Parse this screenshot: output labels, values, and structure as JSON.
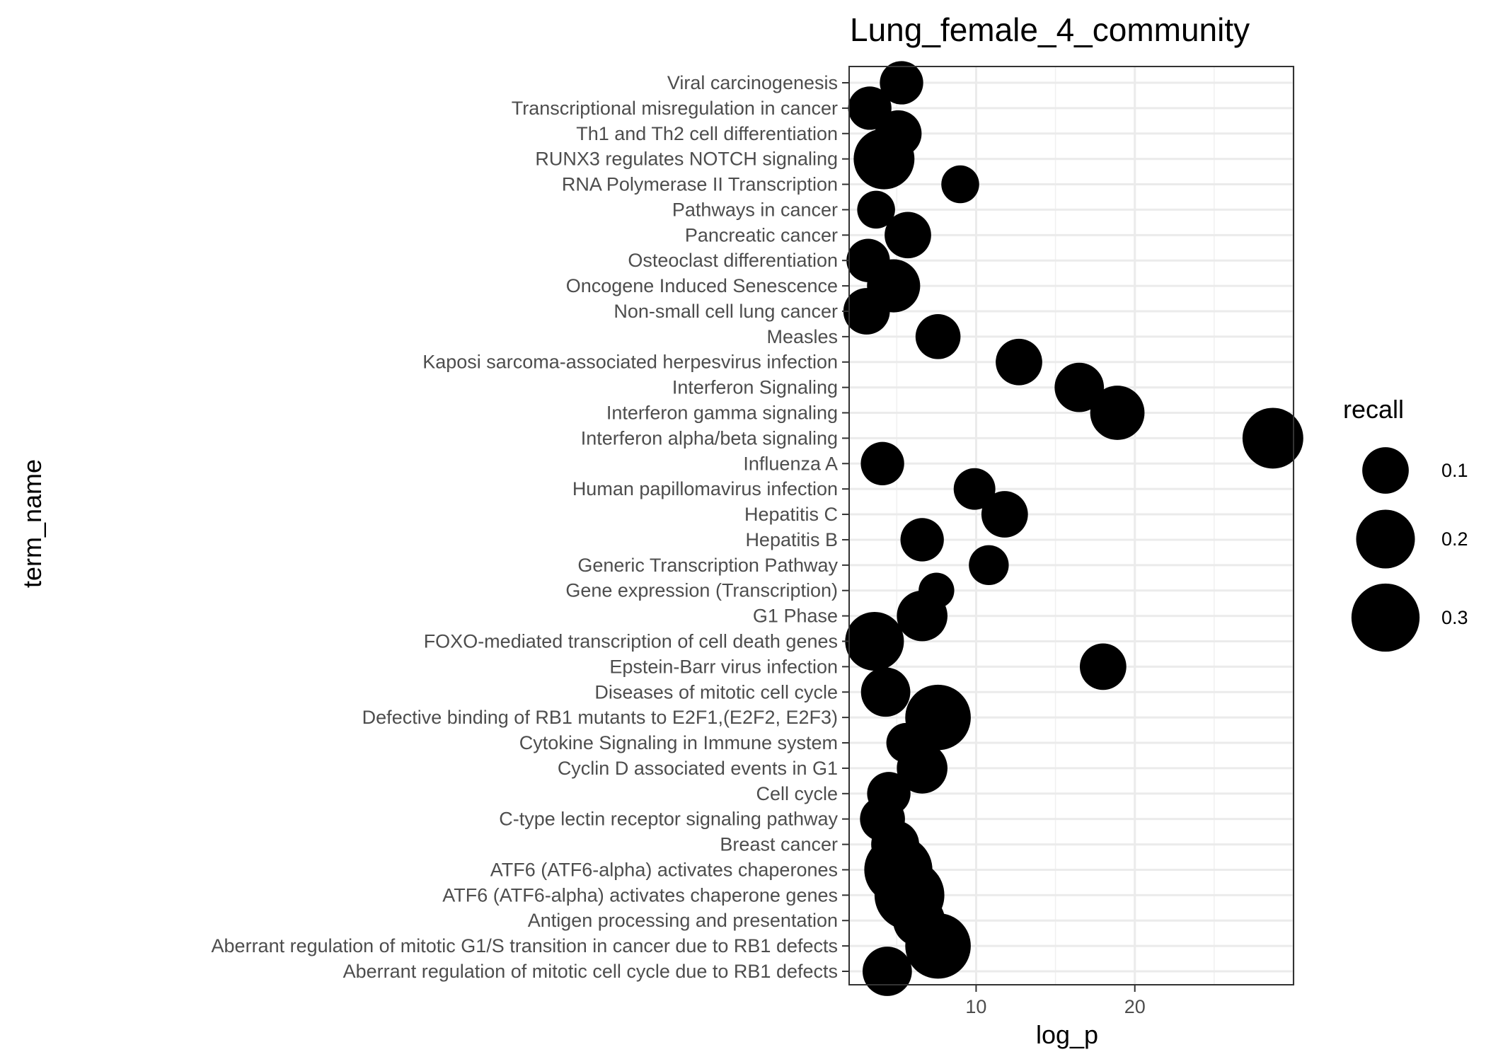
{
  "chart_data": {
    "type": "scatter",
    "title": "Lung_female_4_community",
    "xlabel": "log_p",
    "ylabel": "term_name",
    "xlim": [
      2,
      30
    ],
    "xticks": [
      10,
      20
    ],
    "grid": true,
    "legend_position": "right",
    "legend": {
      "title": "recall",
      "entries": [
        {
          "label": "0.1",
          "value": 0.1
        },
        {
          "label": "0.2",
          "value": 0.2
        },
        {
          "label": "0.3",
          "value": 0.3
        }
      ]
    },
    "color": "#000000",
    "points": [
      {
        "term": "Viral carcinogenesis",
        "log_p": 5.3,
        "recall": 0.08
      },
      {
        "term": "Transcriptional misregulation in cancer",
        "log_p": 3.3,
        "recall": 0.08
      },
      {
        "term": "Th1 and Th2 cell differentiation",
        "log_p": 5.1,
        "recall": 0.1
      },
      {
        "term": "RUNX3 regulates NOTCH signaling",
        "log_p": 4.2,
        "recall": 0.22
      },
      {
        "term": "RNA Polymerase II Transcription",
        "log_p": 9.0,
        "recall": 0.05
      },
      {
        "term": "Pathways in cancer",
        "log_p": 3.7,
        "recall": 0.05
      },
      {
        "term": "Pancreatic cancer",
        "log_p": 5.7,
        "recall": 0.1
      },
      {
        "term": "Osteoclast differentiation",
        "log_p": 3.2,
        "recall": 0.08
      },
      {
        "term": "Oncogene Induced Senescence",
        "log_p": 4.8,
        "recall": 0.15
      },
      {
        "term": "Non-small cell lung cancer",
        "log_p": 3.1,
        "recall": 0.1
      },
      {
        "term": "Measles",
        "log_p": 7.6,
        "recall": 0.09
      },
      {
        "term": "Kaposi sarcoma-associated herpesvirus infection",
        "log_p": 12.7,
        "recall": 0.1
      },
      {
        "term": "Interferon Signaling",
        "log_p": 16.5,
        "recall": 0.12
      },
      {
        "term": "Interferon gamma signaling",
        "log_p": 18.9,
        "recall": 0.16
      },
      {
        "term": "Interferon alpha/beta signaling",
        "log_p": 28.7,
        "recall": 0.22
      },
      {
        "term": "Influenza A",
        "log_p": 4.1,
        "recall": 0.08
      },
      {
        "term": "Human papillomavirus infection",
        "log_p": 9.9,
        "recall": 0.07
      },
      {
        "term": "Hepatitis C",
        "log_p": 11.8,
        "recall": 0.1
      },
      {
        "term": "Hepatitis B",
        "log_p": 6.6,
        "recall": 0.08
      },
      {
        "term": "Generic Transcription Pathway",
        "log_p": 10.8,
        "recall": 0.06
      },
      {
        "term": "Gene expression (Transcription)",
        "log_p": 7.5,
        "recall": 0.04
      },
      {
        "term": "G1 Phase",
        "log_p": 6.6,
        "recall": 0.13
      },
      {
        "term": "FOXO-mediated transcription of cell death genes",
        "log_p": 3.6,
        "recall": 0.2
      },
      {
        "term": "Epstein-Barr virus infection",
        "log_p": 18.0,
        "recall": 0.1
      },
      {
        "term": "Diseases of mitotic cell cycle",
        "log_p": 4.3,
        "recall": 0.12
      },
      {
        "term": "Defective binding of RB1 mutants to E2F1,(E2F2, E2F3)",
        "log_p": 7.6,
        "recall": 0.27
      },
      {
        "term": "Cytokine Signaling in Immune system",
        "log_p": 5.6,
        "recall": 0.06
      },
      {
        "term": "Cyclin D associated events in G1",
        "log_p": 6.6,
        "recall": 0.13
      },
      {
        "term": "Cell cycle",
        "log_p": 4.5,
        "recall": 0.08
      },
      {
        "term": "C-type lectin receptor signaling pathway",
        "log_p": 4.1,
        "recall": 0.09
      },
      {
        "term": "Breast cancer",
        "log_p": 4.9,
        "recall": 0.11
      },
      {
        "term": "ATF6 (ATF6-alpha) activates chaperones",
        "log_p": 5.1,
        "recall": 0.3
      },
      {
        "term": "ATF6 (ATF6-alpha) activates chaperone genes",
        "log_p": 5.8,
        "recall": 0.32
      },
      {
        "term": "Antigen processing and presentation",
        "log_p": 6.4,
        "recall": 0.14
      },
      {
        "term": "Aberrant regulation of mitotic G1/S transition in cancer due to RB1 defects",
        "log_p": 7.6,
        "recall": 0.27
      },
      {
        "term": "Aberrant regulation of mitotic cell cycle due to RB1 defects",
        "log_p": 4.4,
        "recall": 0.12
      }
    ]
  }
}
